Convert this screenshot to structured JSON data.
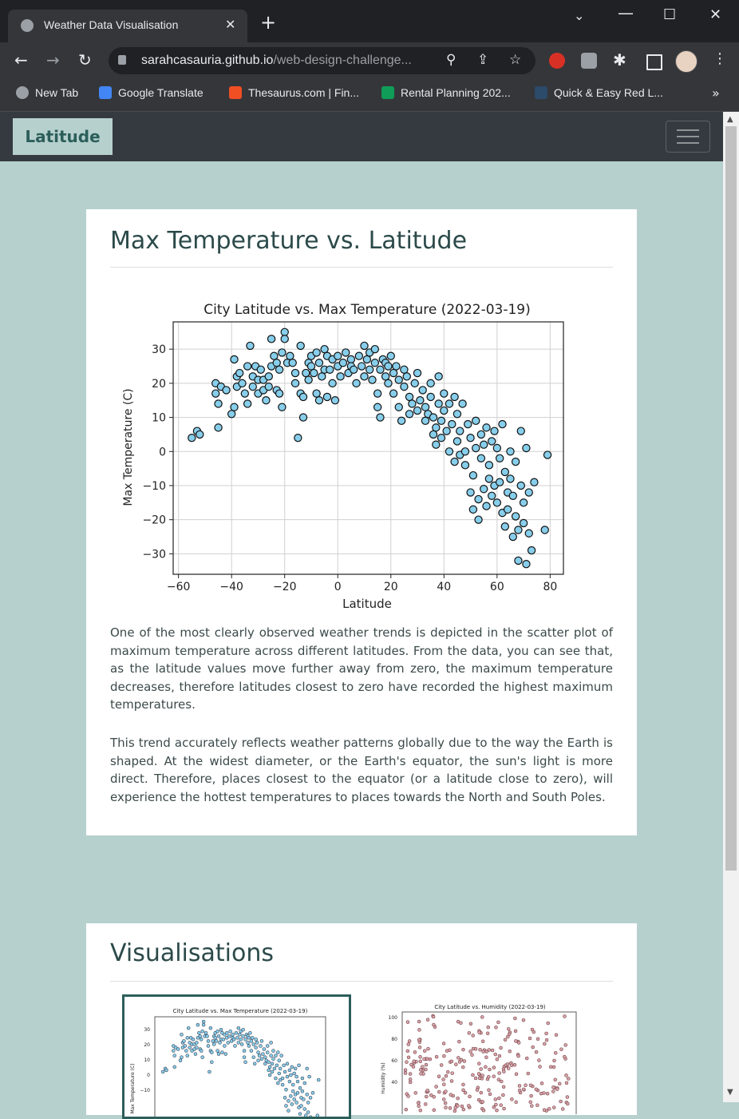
{
  "browser": {
    "tab_title": "Weather Data Visualisation",
    "url_host": "sarahcasauria.github.io",
    "url_rest": "/web-design-challenge...",
    "bookmarks": [
      "New Tab",
      "Google Translate",
      "Thesaurus.com | Fin...",
      "Rental Planning 202...",
      "Quick & Easy Red L..."
    ]
  },
  "nav": {
    "brand": "Latitude"
  },
  "main_card": {
    "title": "Max Temperature vs. Latitude",
    "paragraphs": [
      "One of the most clearly observed weather trends is depicted in the scatter plot of maximum temperature across different latitudes. From the data, you can see that, as the latitude values move further away from zero, the maximum temperature decreases, therefore latitudes closest to zero have recorded the highest maximum temperatures.",
      "This trend accurately reflects weather patterns globally due to the way the Earth is shaped. At the widest diameter, or the Earth's equator, the sun's light is more direct. Therefore, places closest to the equator (or a latitude close to zero), will experience the hottest temperatures to places towards the North and South Poles."
    ]
  },
  "vis_card": {
    "title": "Visualisations",
    "thumbs": [
      {
        "title": "City Latitude vs. Max Temperature (2022-03-19)",
        "ylabel": "Max Temperature (C)",
        "yticks": [
          "30",
          "20",
          "10",
          "0",
          "−10"
        ]
      },
      {
        "title": "City Latitude vs. Humidity (2022-03-19)",
        "ylabel": "Humidity (%)",
        "yticks": [
          "100",
          "80",
          "60",
          "40"
        ]
      }
    ]
  },
  "chart_data": {
    "type": "scatter",
    "title": "City Latitude vs. Max Temperature (2022-03-19)",
    "xlabel": "Latitude",
    "ylabel": "Max Temperature (C)",
    "xlim": [
      -62,
      85
    ],
    "ylim": [
      -36,
      38
    ],
    "xticks": [
      -60,
      -40,
      -20,
      0,
      20,
      40,
      60,
      80
    ],
    "yticks": [
      30,
      20,
      10,
      0,
      -10,
      -20,
      -30
    ],
    "grid": true,
    "colors": {
      "marker_fill": "#87ceeb",
      "marker_edge": "#111111"
    },
    "points": [
      [
        -55,
        4
      ],
      [
        -53,
        6
      ],
      [
        -52,
        5
      ],
      [
        -46,
        17
      ],
      [
        -46,
        20
      ],
      [
        -45,
        14
      ],
      [
        -45,
        7
      ],
      [
        -44,
        19
      ],
      [
        -42,
        18
      ],
      [
        -40,
        11
      ],
      [
        -39,
        13
      ],
      [
        -39,
        27
      ],
      [
        -38,
        19
      ],
      [
        -38,
        22
      ],
      [
        -37,
        23
      ],
      [
        -36,
        20
      ],
      [
        -35,
        17
      ],
      [
        -34,
        25
      ],
      [
        -34,
        14
      ],
      [
        -33,
        31
      ],
      [
        -32,
        22
      ],
      [
        -32,
        19
      ],
      [
        -31,
        25
      ],
      [
        -30,
        17
      ],
      [
        -30,
        21
      ],
      [
        -29,
        24
      ],
      [
        -28,
        18
      ],
      [
        -28,
        21
      ],
      [
        -27,
        15
      ],
      [
        -26,
        22
      ],
      [
        -26,
        19
      ],
      [
        -25,
        33
      ],
      [
        -25,
        25
      ],
      [
        -24,
        28
      ],
      [
        -23,
        26
      ],
      [
        -23,
        18
      ],
      [
        -22,
        24
      ],
      [
        -22,
        17
      ],
      [
        -21,
        29
      ],
      [
        -21,
        13
      ],
      [
        -20,
        35
      ],
      [
        -20,
        33
      ],
      [
        -19,
        26
      ],
      [
        -18,
        28
      ],
      [
        -17,
        26
      ],
      [
        -16,
        20
      ],
      [
        -16,
        23
      ],
      [
        -15,
        4
      ],
      [
        -14,
        31
      ],
      [
        -14,
        17
      ],
      [
        -13,
        10
      ],
      [
        -13,
        16
      ],
      [
        -12,
        23
      ],
      [
        -11,
        26
      ],
      [
        -11,
        21
      ],
      [
        -10,
        28
      ],
      [
        -10,
        25
      ],
      [
        -9,
        23
      ],
      [
        -8,
        29
      ],
      [
        -8,
        17
      ],
      [
        -7,
        15
      ],
      [
        -7,
        26
      ],
      [
        -6,
        22
      ],
      [
        -5,
        30
      ],
      [
        -5,
        24
      ],
      [
        -4,
        28
      ],
      [
        -4,
        16
      ],
      [
        -3,
        24
      ],
      [
        -2,
        27
      ],
      [
        -2,
        20
      ],
      [
        -1,
        15
      ],
      [
        0,
        25
      ],
      [
        0,
        28
      ],
      [
        1,
        22
      ],
      [
        2,
        26
      ],
      [
        3,
        29
      ],
      [
        4,
        23
      ],
      [
        5,
        27
      ],
      [
        5,
        25
      ],
      [
        6,
        24
      ],
      [
        7,
        20
      ],
      [
        8,
        28
      ],
      [
        9,
        25
      ],
      [
        10,
        22
      ],
      [
        10,
        31
      ],
      [
        11,
        27
      ],
      [
        12,
        24
      ],
      [
        12,
        29
      ],
      [
        13,
        21
      ],
      [
        14,
        26
      ],
      [
        14,
        30
      ],
      [
        15,
        17
      ],
      [
        15,
        13
      ],
      [
        16,
        10
      ],
      [
        16,
        24
      ],
      [
        17,
        27
      ],
      [
        18,
        22
      ],
      [
        18,
        26
      ],
      [
        19,
        20
      ],
      [
        19,
        25
      ],
      [
        20,
        28
      ],
      [
        21,
        23
      ],
      [
        21,
        17
      ],
      [
        22,
        25
      ],
      [
        23,
        21
      ],
      [
        23,
        13
      ],
      [
        24,
        9
      ],
      [
        25,
        24
      ],
      [
        25,
        19
      ],
      [
        26,
        22
      ],
      [
        27,
        16
      ],
      [
        27,
        11
      ],
      [
        28,
        14
      ],
      [
        29,
        20
      ],
      [
        30,
        12
      ],
      [
        30,
        23
      ],
      [
        31,
        15
      ],
      [
        32,
        18
      ],
      [
        33,
        9
      ],
      [
        33,
        13
      ],
      [
        34,
        11
      ],
      [
        35,
        16
      ],
      [
        35,
        20
      ],
      [
        36,
        5
      ],
      [
        36,
        10
      ],
      [
        37,
        2
      ],
      [
        37,
        7
      ],
      [
        38,
        14
      ],
      [
        38,
        22
      ],
      [
        39,
        9
      ],
      [
        39,
        4
      ],
      [
        40,
        12
      ],
      [
        40,
        17
      ],
      [
        41,
        6
      ],
      [
        42,
        0
      ],
      [
        42,
        14
      ],
      [
        43,
        8
      ],
      [
        44,
        -3
      ],
      [
        44,
        16
      ],
      [
        45,
        3
      ],
      [
        45,
        11
      ],
      [
        46,
        -1
      ],
      [
        46,
        6
      ],
      [
        47,
        14
      ],
      [
        48,
        0
      ],
      [
        48,
        -4
      ],
      [
        49,
        8
      ],
      [
        50,
        -12
      ],
      [
        50,
        4
      ],
      [
        51,
        -17
      ],
      [
        51,
        -7
      ],
      [
        52,
        1
      ],
      [
        52,
        9
      ],
      [
        53,
        -14
      ],
      [
        53,
        -20
      ],
      [
        54,
        5
      ],
      [
        54,
        -2
      ],
      [
        55,
        -11
      ],
      [
        55,
        2
      ],
      [
        56,
        7
      ],
      [
        56,
        -16
      ],
      [
        57,
        -4
      ],
      [
        57,
        -8
      ],
      [
        58,
        3
      ],
      [
        58,
        -13
      ],
      [
        59,
        -10
      ],
      [
        59,
        6
      ],
      [
        60,
        -15
      ],
      [
        60,
        1
      ],
      [
        61,
        -9
      ],
      [
        61,
        -2
      ],
      [
        62,
        8
      ],
      [
        62,
        -18
      ],
      [
        63,
        -6
      ],
      [
        63,
        -22
      ],
      [
        64,
        -12
      ],
      [
        64,
        -17
      ],
      [
        65,
        0
      ],
      [
        65,
        -8
      ],
      [
        66,
        -25
      ],
      [
        66,
        -13
      ],
      [
        67,
        -19
      ],
      [
        67,
        -3
      ],
      [
        68,
        -32
      ],
      [
        68,
        -23
      ],
      [
        69,
        -10
      ],
      [
        69,
        6
      ],
      [
        70,
        -15
      ],
      [
        70,
        -21
      ],
      [
        71,
        -33
      ],
      [
        71,
        1
      ],
      [
        72,
        -24
      ],
      [
        72,
        -12
      ],
      [
        73,
        -29
      ],
      [
        74,
        -9
      ],
      [
        78,
        -23
      ],
      [
        79,
        -1
      ]
    ]
  }
}
